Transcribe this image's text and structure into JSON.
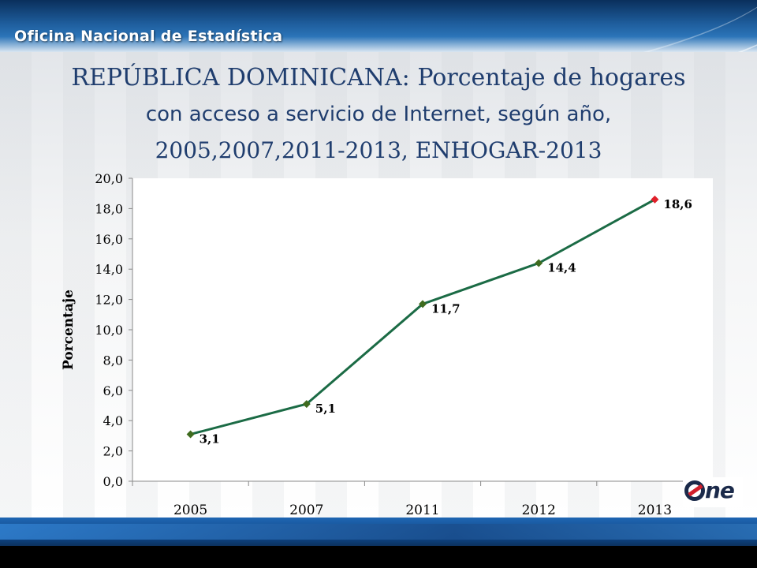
{
  "header": {
    "org_name": "Oficina Nacional de Estadística"
  },
  "title": {
    "line1": "REPÚBLICA DOMINICANA: Porcentaje de hogares",
    "line2": "con acceso a servicio de Internet, según año,",
    "line3": "2005,2007,2011-2013, ENHOGAR-2013"
  },
  "logo": {
    "text": "ne"
  },
  "chart_data": {
    "type": "line",
    "categories": [
      "2005",
      "2007",
      "2011",
      "2012",
      "2013"
    ],
    "series": [
      {
        "values": [
          3.1,
          5.1,
          11.7,
          14.4,
          18.6
        ],
        "labels": [
          "3,1",
          "5,1",
          "11,7",
          "14,4",
          "18,6"
        ],
        "color": "#1b6b45",
        "marker_color": "#3f6b1e",
        "highlight_last_color": "#e0202a"
      }
    ],
    "ylabel": "Porcentaje",
    "xlabel": "",
    "ylim": [
      0,
      20
    ],
    "yticks": [
      "0,0",
      "2,0",
      "4,0",
      "6,0",
      "8,0",
      "10,0",
      "12,0",
      "14,0",
      "16,0",
      "18,0",
      "20,0"
    ],
    "grid": false,
    "legend": "none"
  }
}
